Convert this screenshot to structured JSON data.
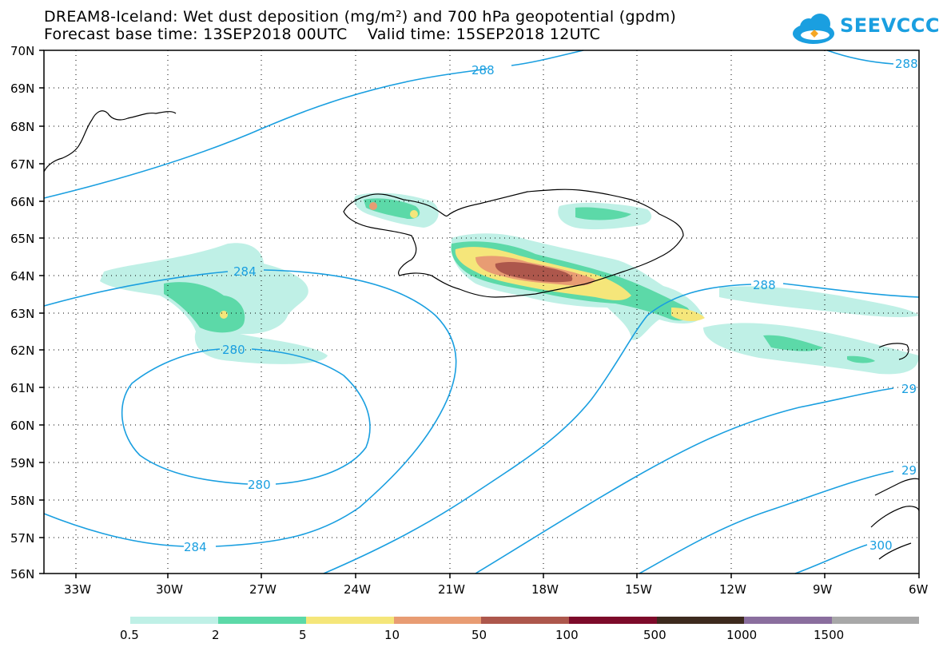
{
  "header": {
    "title_line1": "DREAM8-Iceland: Wet dust deposition (mg/m²) and 700 hPa geopotential (gpdm)",
    "title_line2": "Forecast base time: 13SEP2018 00UTC    Valid time: 15SEP2018 12UTC",
    "logo_text": "SEEVCCC"
  },
  "axes": {
    "lat_labels": [
      "70N",
      "69N",
      "68N",
      "67N",
      "66N",
      "65N",
      "64N",
      "63N",
      "62N",
      "61N",
      "60N",
      "59N",
      "58N",
      "57N",
      "56N"
    ],
    "lon_labels": [
      "33W",
      "30W",
      "27W",
      "24W",
      "21W",
      "18W",
      "15W",
      "12W",
      "9W",
      "6W"
    ]
  },
  "contours": {
    "labels": [
      "288",
      "288",
      "284",
      "280",
      "280",
      "284",
      "288",
      "29",
      "29",
      "300"
    ]
  },
  "legend": {
    "colors": [
      "#bff0e6",
      "#5cd9a8",
      "#f5e67a",
      "#e89c73",
      "#ad574c",
      "#7d0a2a",
      "#3d2a1e",
      "#8a6e9e",
      "#a8a8a8"
    ],
    "labels": [
      "0.5",
      "2",
      "5",
      "10",
      "50",
      "100",
      "500",
      "1000",
      "1500"
    ]
  },
  "colors": {
    "contour": "#1a9fe0",
    "coast": "#000000"
  }
}
